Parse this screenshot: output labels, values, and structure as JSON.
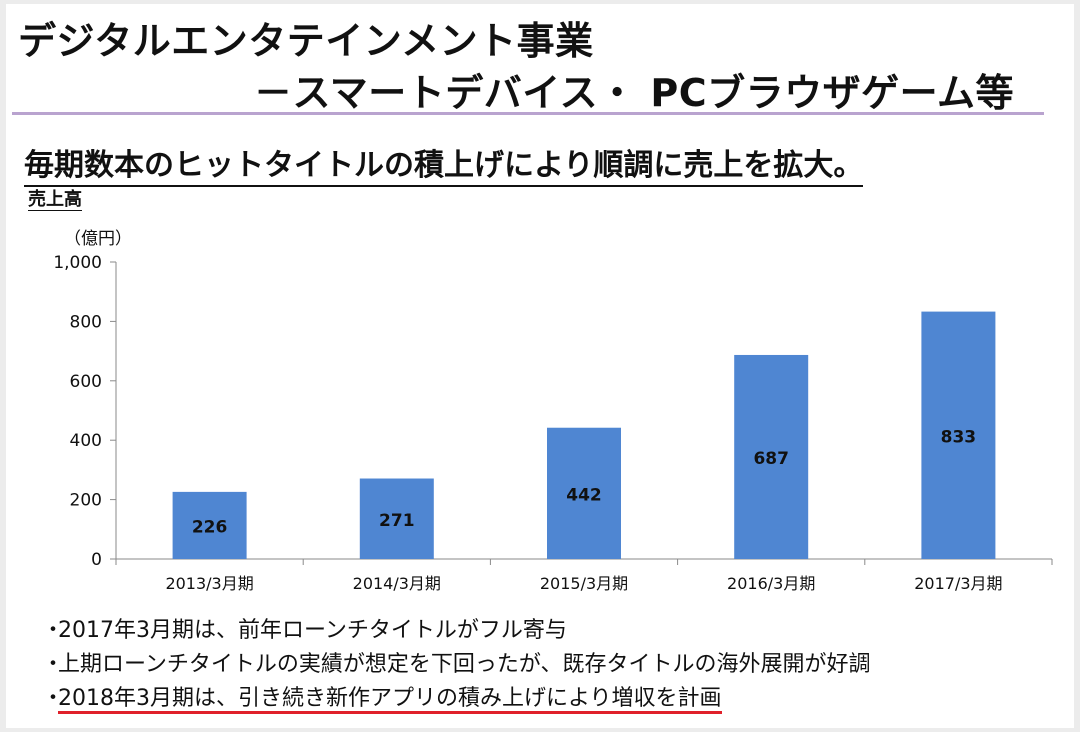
{
  "header": {
    "title_line1": "デジタルエンタテインメント事業",
    "title_line2": "－スマートデバイス・ PCブラウザゲーム等"
  },
  "subtitle": "毎期数本のヒットタイトルの積上げにより順調に売上を拡大。",
  "section_label": "売上高",
  "colors": {
    "bar": "#4f86d2",
    "rule": "#b9a3cf",
    "underline": "#e0202a"
  },
  "chart_data": {
    "type": "bar",
    "title": "",
    "ylabel": "（億円）",
    "xlabel": "",
    "categories": [
      "2013/3月期",
      "2014/3月期",
      "2015/3月期",
      "2016/3月期",
      "2017/3月期"
    ],
    "values": [
      226,
      271,
      442,
      687,
      833
    ],
    "value_labels": [
      "226",
      "271",
      "442",
      "687",
      "833"
    ],
    "ylim": [
      0,
      1000
    ],
    "yticks": [
      0,
      200,
      400,
      600,
      800,
      1000
    ],
    "ytick_labels": [
      "0",
      "200",
      "400",
      "600",
      "800",
      "1,000"
    ],
    "grid": false,
    "legend": "none"
  },
  "bullets": [
    {
      "marker": "・",
      "text": "2017年3月期は、前年ローンチタイトルがフル寄与"
    },
    {
      "marker": "・",
      "text": "上期ローンチタイトルの実績が想定を下回ったが、既存タイトルの海外展開が好調"
    },
    {
      "marker": "・",
      "text": "2018年3月期は、引き続き新作アプリの積み上げにより増収を計画"
    }
  ]
}
